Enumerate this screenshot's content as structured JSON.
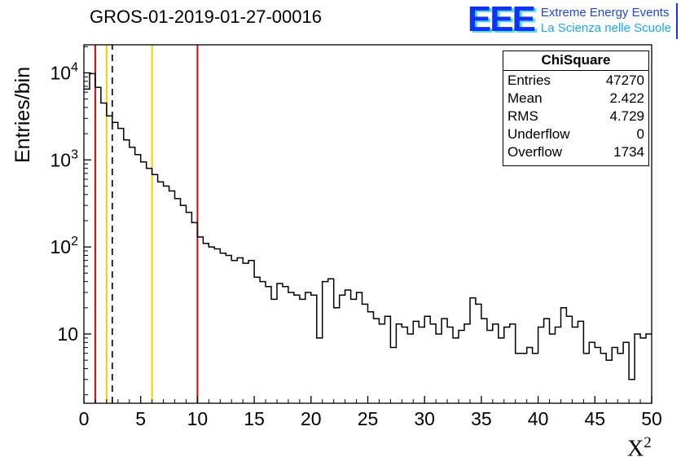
{
  "header": {
    "title": "GROS-01-2019-01-27-00016"
  },
  "logo": {
    "big": "EEE",
    "line1": "Extreme Energy Events",
    "line2": "La Scienza nelle Scuole"
  },
  "stats": {
    "title": "ChiSquare",
    "rows": [
      {
        "label": "Entries",
        "value": "47270"
      },
      {
        "label": "Mean",
        "value": "2.422"
      },
      {
        "label": "RMS",
        "value": "4.729"
      },
      {
        "label": "Underflow",
        "value": "0"
      },
      {
        "label": "Overflow",
        "value": "1734"
      }
    ]
  },
  "chart_data": {
    "type": "bar",
    "subtype": "step-histogram",
    "title": "GROS-01-2019-01-27-00016",
    "ylabel": "Entries/bin",
    "x_axis_label": {
      "base": "X",
      "exp": "2"
    },
    "y_scale": "log",
    "x_range": [
      0,
      50
    ],
    "y_range": [
      1.6,
      21000
    ],
    "bin_width": 0.5,
    "x_major_ticks": [
      0,
      5,
      10,
      15,
      20,
      25,
      30,
      35,
      40,
      45,
      50
    ],
    "x_minor_step": 1,
    "y_decades": [
      1,
      2,
      3,
      4
    ],
    "grid": false,
    "line_color": "#000000",
    "values": [
      6500,
      9800,
      6800,
      4500,
      3200,
      2700,
      2300,
      1700,
      1400,
      1150,
      950,
      800,
      680,
      560,
      500,
      440,
      360,
      300,
      250,
      190,
      130,
      110,
      100,
      95,
      85,
      80,
      70,
      75,
      65,
      70,
      45,
      40,
      35,
      25,
      38,
      35,
      30,
      28,
      25,
      30,
      28,
      9,
      40,
      43,
      20,
      28,
      32,
      25,
      30,
      22,
      18,
      15,
      13,
      16,
      7,
      13,
      12,
      10,
      14,
      12,
      16,
      13,
      10,
      15,
      12,
      9,
      11,
      13,
      26,
      22,
      15,
      11,
      13,
      9,
      12,
      13,
      6,
      6,
      7,
      6,
      12,
      15,
      10,
      12,
      20,
      16,
      12,
      14,
      6,
      8,
      7,
      6,
      5,
      7,
      6,
      8,
      3,
      10,
      9,
      10
    ],
    "vlines": [
      {
        "x": 1,
        "color": "#ee0000",
        "dash": false
      },
      {
        "x": 2,
        "color": "#ffcc00",
        "dash": false
      },
      {
        "x": 2.5,
        "color": "#000000",
        "dash": true
      },
      {
        "x": 6,
        "color": "#ffcc00",
        "dash": false
      },
      {
        "x": 10,
        "color": "#ee0000",
        "dash": false
      }
    ]
  }
}
